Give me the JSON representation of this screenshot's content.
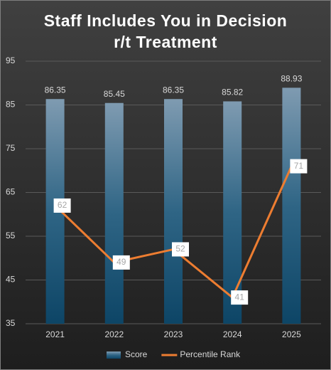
{
  "chart_data": {
    "type": "combo",
    "title": "Staff Includes You in Decision r/t Treatment",
    "categories": [
      "2021",
      "2022",
      "2023",
      "2024",
      "2025"
    ],
    "series": [
      {
        "name": "Score",
        "type": "bar",
        "color": "#1d5a7e",
        "values": [
          86.35,
          85.45,
          86.35,
          85.82,
          88.93
        ]
      },
      {
        "name": "Percentile Rank",
        "type": "line",
        "color": "#ed7d31",
        "values": [
          62,
          49,
          52,
          41,
          71
        ]
      }
    ],
    "ylim": [
      35,
      95
    ],
    "yticks": [
      35,
      45,
      55,
      65,
      75,
      85,
      95
    ],
    "grid": true,
    "legend": "bottom"
  }
}
